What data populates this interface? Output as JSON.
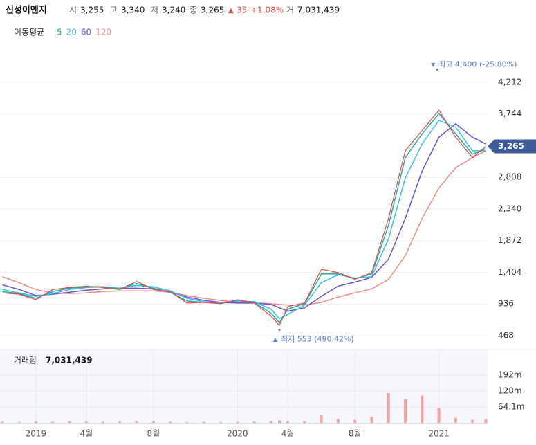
{
  "chart_data": {
    "type": "line",
    "quote": {
      "name": "신성이엔지",
      "open_label": "시",
      "open": "3,255",
      "high_label": "고",
      "high": "3,340",
      "low_label": "저",
      "low": "3,240",
      "close_label": "종",
      "close": "3,265",
      "change": "35",
      "change_pct": "+1.08%",
      "volume_label": "거",
      "volume": "7,031,439"
    },
    "legend_title": "이동평균",
    "x": [
      -2,
      -1,
      0,
      1,
      2,
      3,
      4,
      5,
      6,
      7,
      8,
      9,
      10,
      11,
      12,
      13,
      14,
      14.5,
      15,
      16,
      17,
      18,
      19,
      20,
      21,
      22,
      23,
      24,
      25,
      26,
      26.8
    ],
    "close": {
      "color": "#e8474a",
      "values": [
        1100,
        1080,
        1000,
        1150,
        1180,
        1200,
        1180,
        1150,
        1270,
        1150,
        1120,
        950,
        960,
        940,
        1000,
        950,
        760,
        620,
        900,
        950,
        1450,
        1400,
        1300,
        1400,
        2200,
        3200,
        3500,
        3800,
        3400,
        3100,
        3265
      ]
    },
    "series": [
      {
        "name": "5",
        "color": "#1fae9c",
        "values": [
          1120,
          1090,
          1020,
          1120,
          1170,
          1190,
          1190,
          1160,
          1240,
          1170,
          1110,
          980,
          960,
          945,
          990,
          960,
          800,
          660,
          860,
          940,
          1380,
          1380,
          1310,
          1380,
          2100,
          3100,
          3450,
          3750,
          3450,
          3150,
          3230
        ]
      },
      {
        "name": "20",
        "color": "#3cbde8",
        "values": [
          1150,
          1100,
          1050,
          1090,
          1150,
          1180,
          1190,
          1170,
          1210,
          1190,
          1130,
          1020,
          970,
          950,
          980,
          970,
          860,
          720,
          780,
          920,
          1250,
          1370,
          1320,
          1340,
          1900,
          2800,
          3300,
          3650,
          3550,
          3200,
          3200
        ]
      },
      {
        "name": "60",
        "color": "#6a4fd3",
        "values": [
          1220,
          1150,
          1060,
          1080,
          1110,
          1140,
          1160,
          1170,
          1170,
          1160,
          1110,
          1040,
          990,
          960,
          950,
          950,
          930,
          880,
          830,
          880,
          1050,
          1200,
          1260,
          1330,
          1600,
          2200,
          2900,
          3400,
          3600,
          3400,
          3300
        ]
      },
      {
        "name": "120",
        "color": "#f08a8a",
        "values": [
          1340,
          1250,
          1150,
          1100,
          1090,
          1100,
          1120,
          1130,
          1130,
          1130,
          1110,
          1060,
          1020,
          990,
          960,
          950,
          940,
          930,
          920,
          920,
          960,
          1040,
          1100,
          1160,
          1300,
          1650,
          2200,
          2650,
          2950,
          3100,
          3200
        ]
      }
    ],
    "xlim": [
      -2.14,
      26.9
    ],
    "xticks": [
      {
        "value": 0,
        "label": "2019"
      },
      {
        "value": 3,
        "label": "4월"
      },
      {
        "value": 7,
        "label": "8월"
      },
      {
        "value": 12,
        "label": "2020"
      },
      {
        "value": 15,
        "label": "4월"
      },
      {
        "value": 19,
        "label": "8월"
      },
      {
        "value": 24,
        "label": "2021"
      }
    ],
    "ylim": [
      300,
      4450
    ],
    "yticks": [
      468,
      936,
      {
        "value": 1404,
        "label": "1,404"
      },
      {
        "value": 1872,
        "label": "1,872"
      },
      {
        "value": 2340,
        "label": "2,340"
      },
      {
        "value": 2808,
        "label": "2,808"
      },
      {
        "value": 3744,
        "label": "3,744"
      },
      {
        "value": 4212,
        "label": "4,212"
      }
    ],
    "current_price": {
      "value": 3265,
      "label": "3,265"
    },
    "annotations": [
      {
        "text": "최고 4,400 (-25.80%)",
        "x": 23.9,
        "value": 4400
      },
      {
        "text": "최저 553 (490.42%)",
        "x": 14.5,
        "value": 553
      }
    ],
    "grid": true,
    "volume": {
      "title": "거래량",
      "total": "7,031,439",
      "color": "#f4a0a0",
      "values": [
        4,
        3,
        5,
        4,
        6,
        5,
        4,
        5,
        7,
        5,
        4,
        3,
        4,
        3,
        4,
        5,
        8,
        10,
        6,
        7,
        30,
        15,
        12,
        25,
        120,
        95,
        110,
        60,
        20,
        12,
        15
      ],
      "ylim": [
        0,
        286
      ],
      "yticks": [
        {
          "value": 64.1,
          "label": "64.1m"
        },
        {
          "value": 128,
          "label": "128m"
        },
        {
          "value": 192,
          "label": "192m"
        }
      ]
    }
  }
}
